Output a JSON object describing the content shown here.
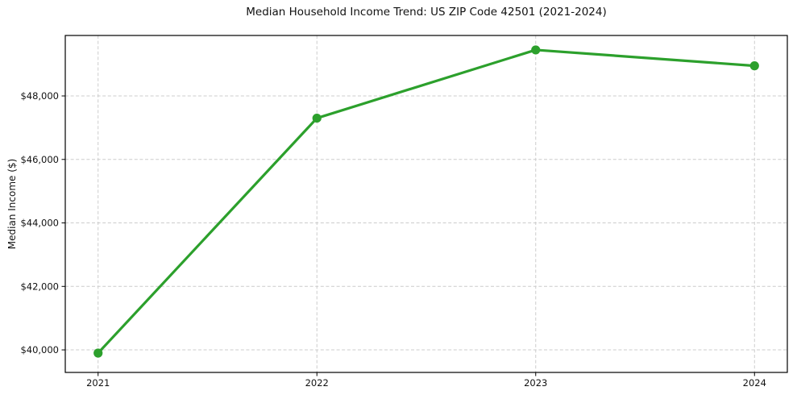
{
  "chart_data": {
    "type": "line",
    "title": "Median Household Income Trend: US ZIP Code 42501 (2021-2024)",
    "ylabel": "Median Income ($)",
    "x": [
      2021,
      2022,
      2023,
      2024
    ],
    "xtick_labels": [
      "2021",
      "2022",
      "2023",
      "2024"
    ],
    "yticks": [
      40000,
      42000,
      44000,
      46000,
      48000
    ],
    "ytick_labels": [
      "$40,000",
      "$42,000",
      "$44,000",
      "$46,000",
      "$48,000"
    ],
    "series": [
      {
        "name": "Median Household Income",
        "values": [
          39900,
          47300,
          49450,
          48950
        ]
      }
    ],
    "xlim": [
      2020.85,
      2024.15
    ],
    "ylim": [
      39290,
      49905
    ],
    "grid": true,
    "legend": "none",
    "line_color": "#2ca02c",
    "marker": "circle"
  }
}
